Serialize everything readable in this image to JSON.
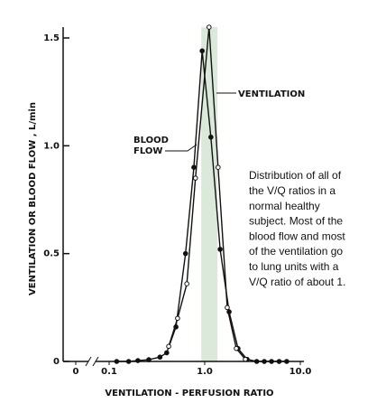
{
  "chart_data": {
    "type": "line",
    "xscale": "log",
    "xlabel": "VENTILATION - PERFUSION RATIO",
    "ylabel": "VENTILATION OR BLOOD FLOW , L/min",
    "xlim": [
      0.1,
      10
    ],
    "ylim": [
      0,
      1.5
    ],
    "xticks": [
      {
        "value": 0.1,
        "label": "0.1"
      },
      {
        "value": 1,
        "label": "1.0"
      },
      {
        "value": 10,
        "label": "10.0"
      }
    ],
    "zero_tick": "0",
    "yticks": [
      0,
      {
        "value": 0.5,
        "label": "0.5"
      },
      {
        "value": 1,
        "label": "1.0"
      },
      {
        "value": 1.5,
        "label": "1.5"
      }
    ],
    "band": [
      0.92,
      1.36
    ],
    "band_color": "#dbe9da",
    "series": [
      {
        "name": "BLOOD FLOW",
        "label_lines": [
          "BLOOD",
          "FLOW"
        ],
        "marker": "filled",
        "color": "#111111",
        "x": [
          0.12,
          0.16,
          0.2,
          0.26,
          0.34,
          0.4,
          0.5,
          0.63,
          0.77,
          0.94,
          1.16,
          1.45,
          1.8,
          2.23,
          2.77,
          3.5,
          4.2,
          5.0,
          6.0,
          7.2
        ],
        "values": [
          0,
          0,
          0.004,
          0.008,
          0.02,
          0.04,
          0.16,
          0.5,
          0.9,
          1.44,
          1.04,
          0.52,
          0.23,
          0.06,
          0.01,
          0,
          0,
          0,
          0,
          0
        ]
      },
      {
        "name": "VENTILATION",
        "marker": "open",
        "color": "#111111",
        "x": [
          0.42,
          0.52,
          0.65,
          0.8,
          1.11,
          1.38,
          1.72,
          2.14,
          2.66
        ],
        "values": [
          0.07,
          0.2,
          0.36,
          0.85,
          1.55,
          0.9,
          0.25,
          0.06,
          0.01
        ]
      }
    ],
    "annotation_lines": [
      "Distribution of all of",
      "the V/Q ratios in a",
      "normal healthy",
      "subject. Most of the",
      "blood flow and most",
      "of the ventilation go",
      "to lung units with a",
      "V/Q ratio of about 1."
    ]
  }
}
